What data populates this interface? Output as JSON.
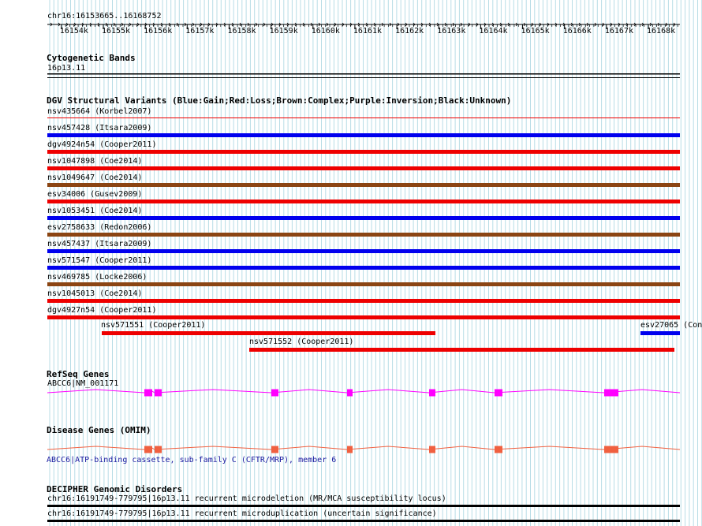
{
  "position": "chr16:16153665..16168752",
  "ruler": {
    "start": 16153665,
    "end": 16168752,
    "tick_labels": [
      "16154k",
      "16155k",
      "16156k",
      "16157k",
      "16158k",
      "16159k",
      "16160k",
      "16161k",
      "16162k",
      "16163k",
      "16164k",
      "16165k",
      "16166k",
      "16167k",
      "16168k"
    ]
  },
  "tracks": {
    "cytoband": {
      "title": "Cytogenetic Bands",
      "band": "16p13.11"
    },
    "dgv": {
      "title": "DGV Structural Variants (Blue:Gain;Red:Loss;Brown:Complex;Purple:Inversion;Black:Unknown)",
      "colors": {
        "gain": "#0000ee",
        "loss": "#ee0000",
        "complex": "#8b4513",
        "inversion": "#800080",
        "unknown": "#000000"
      },
      "features": [
        {
          "label": "nsv435664 (Korbel2007)",
          "type": "loss",
          "thin": true
        },
        {
          "label": "nsv457428 (Itsara2009)",
          "type": "gain"
        },
        {
          "label": "dgv4924n54 (Cooper2011)",
          "type": "loss"
        },
        {
          "label": "nsv1047898 (Coe2014)",
          "type": "loss"
        },
        {
          "label": "nsv1049647 (Coe2014)",
          "type": "complex"
        },
        {
          "label": "esv34006 (Gusev2009)",
          "type": "loss"
        },
        {
          "label": "nsv1053451 (Coe2014)",
          "type": "gain"
        },
        {
          "label": "esv2758633 (Redon2006)",
          "type": "complex"
        },
        {
          "label": "nsv457437 (Itsara2009)",
          "type": "gain"
        },
        {
          "label": "nsv571547 (Cooper2011)",
          "type": "gain"
        },
        {
          "label": "nsv469785 (Locke2006)",
          "type": "complex"
        },
        {
          "label": "nsv1045013 (Coe2014)",
          "type": "loss"
        },
        {
          "label": "dgv4927n54 (Cooper2011)",
          "type": "loss"
        }
      ],
      "partial_features": [
        {
          "label": "nsv571551 (Cooper2011)",
          "type": "loss"
        },
        {
          "label": "esv27065 (Con",
          "type": "gain"
        },
        {
          "label": "nsv571552 (Cooper2011)",
          "type": "loss"
        }
      ]
    },
    "refseq": {
      "title": "RefSeq Genes",
      "gene_label": "ABCC6|NM_001171",
      "color": "#ff00ff"
    },
    "omim": {
      "title": "Disease Genes (OMIM)",
      "gene_desc": "ABCC6|ATP-binding cassette, sub-family C (CFTR/MRP), member 6",
      "color": "#f06040"
    },
    "decipher": {
      "title": "DECIPHER Genomic Disorders",
      "items": [
        {
          "label": "chr16:16191749-779795|16p13.11 recurrent microdeletion (MR/MCA susceptibility locus)"
        },
        {
          "label": "chr16:16191749-779795|16p13.11 recurrent microduplication (uncertain significance)"
        }
      ]
    }
  }
}
